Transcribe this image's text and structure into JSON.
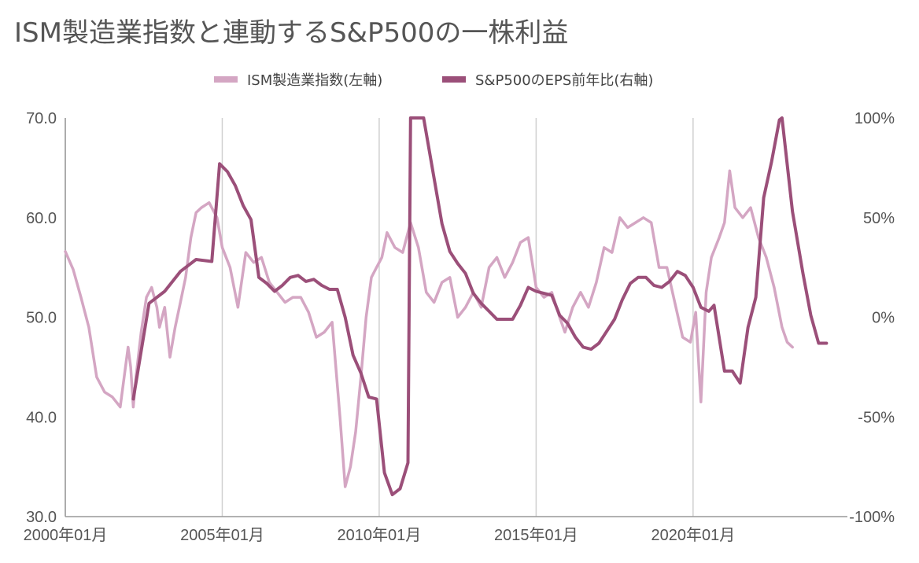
{
  "chart_data": {
    "type": "line",
    "title": "ISM製造業指数と連動するS&P500の一株利益",
    "legend_position": "top",
    "grid": {
      "horizontal": false,
      "vertical": true
    },
    "colors": {
      "ism": "#d4a6c3",
      "eps": "#9b4f79",
      "axis": "#999999",
      "grid": "#d0d0d0"
    },
    "x_axis": {
      "start": "2000-01",
      "end": "2024-12",
      "tick_labels": [
        "2000年01月",
        "2005年01月",
        "2010年01月",
        "2015年01月",
        "2020年01月"
      ],
      "tick_dates": [
        "2000-01",
        "2005-01",
        "2010-01",
        "2015-01",
        "2020-01"
      ]
    },
    "y_left": {
      "ylim": [
        30,
        70
      ],
      "ticks": [
        30,
        40,
        50,
        60,
        70
      ],
      "tick_labels": [
        "30.0",
        "40.0",
        "50.0",
        "60.0",
        "70.0"
      ]
    },
    "y_right": {
      "ylim": [
        -100,
        100
      ],
      "ticks": [
        -100,
        -50,
        0,
        50,
        100
      ],
      "tick_labels": [
        "-100%",
        "-50%",
        "0%",
        "50%",
        "100%"
      ]
    },
    "series": [
      {
        "name": "ISM製造業指数(左軸)",
        "axis": "left",
        "points": [
          [
            "2000-01",
            56.6
          ],
          [
            "2000-04",
            54.8
          ],
          [
            "2000-07",
            52.0
          ],
          [
            "2000-10",
            49.0
          ],
          [
            "2001-01",
            44.0
          ],
          [
            "2001-04",
            42.5
          ],
          [
            "2001-07",
            42.0
          ],
          [
            "2001-10",
            41.0
          ],
          [
            "2002-01",
            47.0
          ],
          [
            "2002-02",
            45.0
          ],
          [
            "2002-03",
            41.0
          ],
          [
            "2002-04",
            44.0
          ],
          [
            "2002-06",
            48.5
          ],
          [
            "2002-08",
            52.0
          ],
          [
            "2002-10",
            53.0
          ],
          [
            "2002-12",
            51.0
          ],
          [
            "2003-01",
            49.0
          ],
          [
            "2003-03",
            51.0
          ],
          [
            "2003-05",
            46.0
          ],
          [
            "2003-07",
            49.0
          ],
          [
            "2003-09",
            51.5
          ],
          [
            "2003-11",
            54.0
          ],
          [
            "2004-01",
            58.0
          ],
          [
            "2004-03",
            60.5
          ],
          [
            "2004-05",
            61.0
          ],
          [
            "2004-08",
            61.5
          ],
          [
            "2004-11",
            60.0
          ],
          [
            "2005-01",
            57.0
          ],
          [
            "2005-04",
            55.0
          ],
          [
            "2005-07",
            51.0
          ],
          [
            "2005-10",
            56.5
          ],
          [
            "2006-01",
            55.5
          ],
          [
            "2006-04",
            56.0
          ],
          [
            "2006-07",
            53.5
          ],
          [
            "2006-10",
            52.5
          ],
          [
            "2007-01",
            51.5
          ],
          [
            "2007-04",
            52.0
          ],
          [
            "2007-07",
            52.0
          ],
          [
            "2007-10",
            50.5
          ],
          [
            "2008-01",
            48.0
          ],
          [
            "2008-04",
            48.5
          ],
          [
            "2008-07",
            49.5
          ],
          [
            "2008-10",
            40.0
          ],
          [
            "2008-12",
            33.0
          ],
          [
            "2009-02",
            35.0
          ],
          [
            "2009-04",
            38.5
          ],
          [
            "2009-06",
            44.0
          ],
          [
            "2009-08",
            50.0
          ],
          [
            "2009-10",
            54.0
          ],
          [
            "2009-12",
            55.0
          ],
          [
            "2010-02",
            56.0
          ],
          [
            "2010-04",
            58.5
          ],
          [
            "2010-07",
            57.0
          ],
          [
            "2010-10",
            56.5
          ],
          [
            "2011-01",
            59.5
          ],
          [
            "2011-04",
            57.0
          ],
          [
            "2011-07",
            52.5
          ],
          [
            "2011-10",
            51.5
          ],
          [
            "2012-01",
            53.5
          ],
          [
            "2012-04",
            54.0
          ],
          [
            "2012-07",
            50.0
          ],
          [
            "2012-10",
            51.0
          ],
          [
            "2013-01",
            52.5
          ],
          [
            "2013-04",
            51.0
          ],
          [
            "2013-07",
            55.0
          ],
          [
            "2013-10",
            56.0
          ],
          [
            "2014-01",
            54.0
          ],
          [
            "2014-04",
            55.5
          ],
          [
            "2014-07",
            57.5
          ],
          [
            "2014-10",
            58.0
          ],
          [
            "2015-01",
            53.0
          ],
          [
            "2015-04",
            52.0
          ],
          [
            "2015-07",
            52.5
          ],
          [
            "2015-10",
            50.0
          ],
          [
            "2015-12",
            48.5
          ],
          [
            "2016-03",
            51.0
          ],
          [
            "2016-06",
            52.5
          ],
          [
            "2016-09",
            51.0
          ],
          [
            "2016-12",
            53.5
          ],
          [
            "2017-03",
            57.0
          ],
          [
            "2017-06",
            56.5
          ],
          [
            "2017-09",
            60.0
          ],
          [
            "2017-12",
            59.0
          ],
          [
            "2018-03",
            59.5
          ],
          [
            "2018-06",
            60.0
          ],
          [
            "2018-09",
            59.5
          ],
          [
            "2018-12",
            55.0
          ],
          [
            "2019-03",
            55.0
          ],
          [
            "2019-06",
            51.5
          ],
          [
            "2019-09",
            48.0
          ],
          [
            "2019-12",
            47.5
          ],
          [
            "2020-02",
            50.5
          ],
          [
            "2020-04",
            41.5
          ],
          [
            "2020-06",
            52.5
          ],
          [
            "2020-08",
            56.0
          ],
          [
            "2020-11",
            58.0
          ],
          [
            "2021-01",
            59.5
          ],
          [
            "2021-03",
            64.7
          ],
          [
            "2021-05",
            61.0
          ],
          [
            "2021-08",
            60.0
          ],
          [
            "2021-11",
            61.0
          ],
          [
            "2022-02",
            58.0
          ],
          [
            "2022-05",
            56.0
          ],
          [
            "2022-08",
            53.0
          ],
          [
            "2022-11",
            49.0
          ],
          [
            "2023-01",
            47.5
          ],
          [
            "2023-03",
            47.0
          ]
        ]
      },
      {
        "name": "S&P500のEPS前年比(右軸)",
        "axis": "right",
        "points": [
          [
            "2002-03",
            -41
          ],
          [
            "2002-09",
            7
          ],
          [
            "2003-03",
            13
          ],
          [
            "2003-09",
            23
          ],
          [
            "2004-03",
            29
          ],
          [
            "2004-09",
            28
          ],
          [
            "2004-12",
            77
          ],
          [
            "2005-03",
            73
          ],
          [
            "2005-06",
            66
          ],
          [
            "2005-09",
            56
          ],
          [
            "2005-12",
            49
          ],
          [
            "2006-03",
            20
          ],
          [
            "2006-06",
            17
          ],
          [
            "2006-09",
            13
          ],
          [
            "2006-12",
            16
          ],
          [
            "2007-03",
            20
          ],
          [
            "2007-06",
            21
          ],
          [
            "2007-09",
            18
          ],
          [
            "2007-12",
            19
          ],
          [
            "2008-03",
            16
          ],
          [
            "2008-06",
            14
          ],
          [
            "2008-09",
            14
          ],
          [
            "2008-12",
            0
          ],
          [
            "2009-03",
            -19
          ],
          [
            "2009-06",
            -28
          ],
          [
            "2009-09",
            -40
          ],
          [
            "2009-12",
            -41
          ],
          [
            "2010-03",
            -78
          ],
          [
            "2010-06",
            -89
          ],
          [
            "2010-09",
            -86
          ],
          [
            "2010-12",
            -73
          ],
          [
            "2011-01",
            100
          ],
          [
            "2011-06",
            100
          ],
          [
            "2012-01",
            47
          ],
          [
            "2012-04",
            33
          ],
          [
            "2012-07",
            27
          ],
          [
            "2012-10",
            22
          ],
          [
            "2013-01",
            12
          ],
          [
            "2013-04",
            7
          ],
          [
            "2013-07",
            3
          ],
          [
            "2013-10",
            -1
          ],
          [
            "2014-01",
            -1
          ],
          [
            "2014-04",
            -1
          ],
          [
            "2014-07",
            6
          ],
          [
            "2014-10",
            15
          ],
          [
            "2015-01",
            13
          ],
          [
            "2015-04",
            12
          ],
          [
            "2015-07",
            11
          ],
          [
            "2015-10",
            1
          ],
          [
            "2016-01",
            -3
          ],
          [
            "2016-04",
            -10
          ],
          [
            "2016-07",
            -15
          ],
          [
            "2016-10",
            -16
          ],
          [
            "2017-01",
            -13
          ],
          [
            "2017-04",
            -7
          ],
          [
            "2017-07",
            -1
          ],
          [
            "2017-10",
            9
          ],
          [
            "2018-01",
            17
          ],
          [
            "2018-04",
            20
          ],
          [
            "2018-07",
            20
          ],
          [
            "2018-10",
            16
          ],
          [
            "2019-01",
            15
          ],
          [
            "2019-04",
            18
          ],
          [
            "2019-07",
            23
          ],
          [
            "2019-10",
            21
          ],
          [
            "2020-01",
            15
          ],
          [
            "2020-04",
            5
          ],
          [
            "2020-07",
            3
          ],
          [
            "2020-09",
            6
          ],
          [
            "2021-01",
            -27
          ],
          [
            "2021-04",
            -27
          ],
          [
            "2021-07",
            -33
          ],
          [
            "2021-10",
            -5
          ],
          [
            "2022-01",
            10
          ],
          [
            "2022-04",
            60
          ],
          [
            "2022-07",
            78
          ],
          [
            "2022-10",
            99
          ],
          [
            "2022-11",
            100
          ],
          [
            "2023-03",
            53
          ],
          [
            "2023-07",
            22
          ],
          [
            "2023-10",
            1
          ],
          [
            "2024-01",
            -13
          ],
          [
            "2024-04",
            -13
          ]
        ]
      }
    ]
  }
}
